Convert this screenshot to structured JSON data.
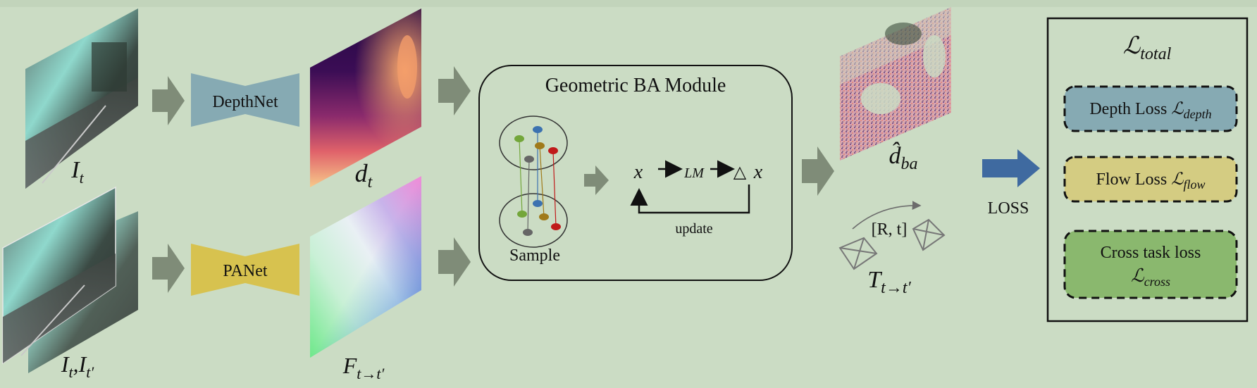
{
  "inputs": {
    "frame_label_main": "I",
    "frame_label_sub": "t",
    "pair_label_1_main": "I",
    "pair_label_1_sub": "t",
    "pair_label_sep": ",",
    "pair_label_2_main": "I",
    "pair_label_2_sub": "t′"
  },
  "networks": {
    "depth_net": "DepthNet",
    "pa_net": "PANet"
  },
  "outputs": {
    "depth_main": "d",
    "depth_sub": "t",
    "flow_main": "F",
    "flow_sub": "t→t′"
  },
  "ba_module": {
    "title": "Geometric BA Module",
    "sample_label": "Sample",
    "x_symbol": "x",
    "lm_label": "LM",
    "delta_symbol": "△",
    "update_label": "update"
  },
  "results": {
    "dba_main": "d̂",
    "dba_sub": "ba",
    "pose_label": "[R, t]",
    "transform_main": "T",
    "transform_sub": "t→t′"
  },
  "loss": {
    "arrow_label": "LOSS",
    "total_main": "ℒ",
    "total_sub": "total",
    "depth_loss_text": "Depth Loss ",
    "depth_loss_main": "ℒ",
    "depth_loss_sub": "depth",
    "flow_loss_text": "Flow Loss ",
    "flow_loss_main": "ℒ",
    "flow_loss_sub": "flow",
    "cross_loss_line1": "Cross task loss",
    "cross_loss_main": "ℒ",
    "cross_loss_sub": "cross",
    "colors": {
      "depth_box": "#86aab3",
      "flow_box": "#d4cc82",
      "cross_box": "#8ab86e"
    }
  },
  "colors": {
    "background": "#cbdcc4",
    "block_arrow": "#7f8c78",
    "depthnet": "#86aab3",
    "panet": "#d7c24f",
    "loss_arrow": "#3f6aa0"
  }
}
